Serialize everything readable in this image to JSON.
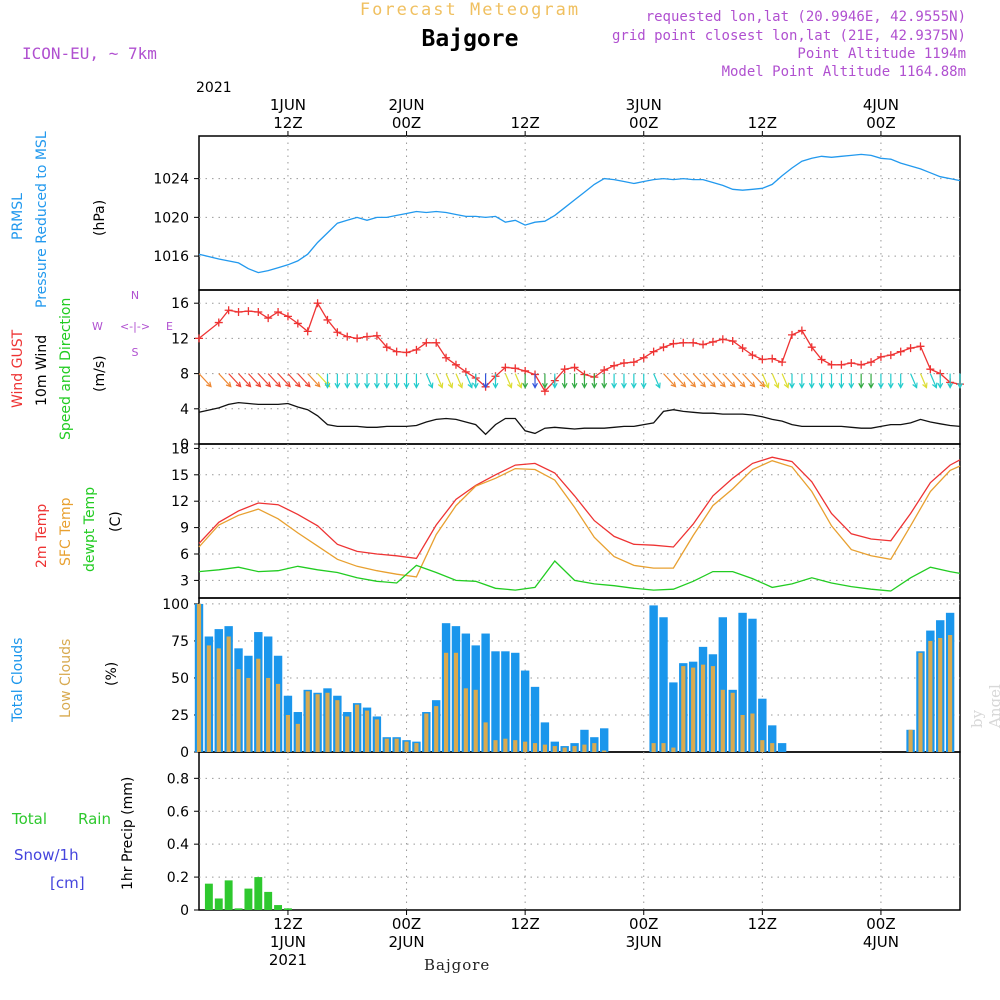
{
  "header": {
    "title": "Forecast Meteogram",
    "station": "Bajgore",
    "model": "ICON-EU, ~ 7km",
    "requested": "requested lon,lat (20.9946E, 42.9555N)",
    "grid": "grid point closest lon,lat (21E, 42.9375N)",
    "point_alt": "Point Altitude 1194m",
    "model_alt": "Model Point Altitude 1164.88m"
  },
  "footer": {
    "station": "Bajgore",
    "watermark": "by Angel"
  },
  "colors": {
    "pressure": "#2299ee",
    "gust": "#ee3333",
    "wind": "#111111",
    "t2m": "#ee3333",
    "tsfc": "#e8a030",
    "dewpt": "#22cc22",
    "total_clouds": "#1a96ec",
    "low_clouds": "#d8aa50",
    "rain": "#2ec82e",
    "snow": "#4444dd",
    "header_purple": "#b050d0"
  },
  "time_axis": {
    "top": {
      "year": "2021",
      "labels": [
        {
          "line1": "1JUN",
          "line2": "12Z"
        },
        {
          "line1": "2JUN",
          "line2": "00Z"
        },
        {
          "line1": "",
          "line2": "12Z"
        },
        {
          "line1": "3JUN",
          "line2": "00Z"
        },
        {
          "line1": "",
          "line2": "12Z"
        },
        {
          "line1": "4JUN",
          "line2": "00Z"
        }
      ]
    },
    "bottom": {
      "year": "2021",
      "labels": [
        {
          "line1": "12Z",
          "line2": "1JUN"
        },
        {
          "line1": "00Z",
          "line2": "2JUN"
        },
        {
          "line1": "12Z",
          "line2": ""
        },
        {
          "line1": "00Z",
          "line2": "3JUN"
        },
        {
          "line1": "12Z",
          "line2": ""
        },
        {
          "line1": "00Z",
          "line2": "4JUN"
        }
      ]
    },
    "tick_hours": [
      12,
      24,
      36,
      48,
      60,
      72
    ],
    "range_hours": [
      3,
      80
    ]
  },
  "chart_data": [
    {
      "type": "line",
      "panel": "pressure",
      "label_lines": [
        "PRMSL",
        "Pressure Reduced to MSL"
      ],
      "ylabel": "(hPa)",
      "yticks": [
        1016,
        1020,
        1024
      ],
      "ylim": [
        1012.5,
        1028.4
      ],
      "x_hours": [
        3,
        5,
        7,
        8,
        9,
        10,
        11,
        12,
        13,
        14,
        15,
        16,
        17,
        18,
        19,
        20,
        21,
        22,
        23,
        24,
        25,
        26,
        27,
        28,
        29,
        30,
        31,
        32,
        33,
        34,
        35,
        36,
        37,
        38,
        39,
        40,
        41,
        42,
        43,
        44,
        45,
        46,
        47,
        48,
        49,
        50,
        51,
        52,
        53,
        54,
        55,
        56,
        57,
        58,
        59,
        60,
        61,
        62,
        63,
        64,
        65,
        66,
        67,
        68,
        69,
        70,
        71,
        72,
        73,
        74,
        75,
        76,
        77,
        78,
        79,
        80
      ],
      "series": [
        {
          "name": "PRMSL",
          "values": [
            1016.2,
            1015.7,
            1015.3,
            1014.7,
            1014.3,
            1014.5,
            1014.8,
            1015.1,
            1015.5,
            1016.2,
            1017.4,
            1018.4,
            1019.4,
            1019.7,
            1020.0,
            1019.7,
            1020.0,
            1020.0,
            1020.2,
            1020.4,
            1020.6,
            1020.5,
            1020.6,
            1020.5,
            1020.3,
            1020.1,
            1020.1,
            1020.0,
            1020.1,
            1019.5,
            1019.7,
            1019.2,
            1019.5,
            1019.6,
            1020.2,
            1021.0,
            1021.8,
            1022.6,
            1023.4,
            1024.0,
            1023.9,
            1023.7,
            1023.5,
            1023.7,
            1023.9,
            1024.0,
            1023.9,
            1024.0,
            1023.9,
            1023.9,
            1023.6,
            1023.3,
            1022.9,
            1022.8,
            1022.9,
            1023.0,
            1023.4,
            1024.3,
            1025.1,
            1025.8,
            1026.1,
            1026.3,
            1026.2,
            1026.3,
            1026.4,
            1026.5,
            1026.4,
            1026.1,
            1026.0,
            1025.6,
            1025.3,
            1025.0,
            1024.6,
            1024.2,
            1024.0,
            1023.8
          ]
        }
      ]
    },
    {
      "type": "line",
      "panel": "wind",
      "label_lines": [
        "Wind GUST",
        "10m Wind",
        "Speed and Direction"
      ],
      "ylabel": "(m/s)",
      "compass": {
        "n": "N",
        "s": "S",
        "w": "W",
        "e": "E",
        "arrows": "<-|->"
      },
      "yticks": [
        0,
        4,
        8,
        12,
        16
      ],
      "ylim": [
        0,
        17.5
      ],
      "x_hours": [
        3,
        5,
        6,
        7,
        8,
        9,
        10,
        11,
        12,
        13,
        14,
        15,
        16,
        17,
        18,
        19,
        20,
        21,
        22,
        23,
        24,
        25,
        26,
        27,
        28,
        29,
        30,
        31,
        32,
        33,
        34,
        35,
        36,
        37,
        38,
        39,
        40,
        41,
        42,
        43,
        44,
        45,
        46,
        47,
        48,
        49,
        50,
        51,
        52,
        53,
        54,
        55,
        56,
        57,
        58,
        59,
        60,
        61,
        62,
        63,
        64,
        65,
        66,
        67,
        68,
        69,
        70,
        71,
        72,
        73,
        74,
        75,
        76,
        77,
        78,
        79,
        80
      ],
      "series": [
        {
          "name": "Wind GUST",
          "values": [
            12.0,
            13.8,
            15.2,
            15.0,
            15.1,
            15.0,
            14.3,
            15.0,
            14.5,
            13.7,
            12.8,
            16.0,
            14.1,
            12.7,
            12.2,
            12.0,
            12.2,
            12.3,
            11.0,
            10.5,
            10.4,
            10.7,
            11.5,
            11.5,
            9.8,
            9.0,
            8.2,
            7.5,
            6.5,
            7.7,
            8.7,
            8.6,
            8.3,
            7.9,
            6.0,
            7.2,
            8.5,
            8.7,
            7.9,
            7.6,
            8.4,
            8.9,
            9.2,
            9.3,
            9.8,
            10.5,
            11.0,
            11.4,
            11.5,
            11.5,
            11.3,
            11.6,
            11.9,
            11.7,
            10.9,
            10.1,
            9.6,
            9.7,
            9.3,
            12.4,
            12.9,
            11.0,
            9.6,
            9.0,
            9.0,
            9.2,
            9.0,
            9.3,
            9.9,
            10.1,
            10.5,
            10.9,
            11.1,
            8.5,
            8.0,
            7.0,
            6.8
          ]
        },
        {
          "name": "10m Wind",
          "values": [
            3.6,
            4.1,
            4.5,
            4.7,
            4.6,
            4.5,
            4.5,
            4.5,
            4.6,
            4.2,
            3.9,
            3.2,
            2.2,
            2.0,
            2.0,
            2.0,
            1.9,
            1.9,
            2.0,
            2.0,
            2.0,
            2.1,
            2.5,
            2.8,
            2.9,
            2.8,
            2.5,
            2.2,
            1.1,
            2.2,
            2.9,
            2.9,
            1.5,
            1.2,
            1.8,
            1.9,
            1.8,
            1.7,
            1.8,
            1.8,
            1.8,
            1.9,
            2.0,
            2.0,
            2.2,
            2.4,
            3.7,
            3.9,
            3.7,
            3.6,
            3.5,
            3.5,
            3.4,
            3.4,
            3.4,
            3.3,
            3.1,
            2.8,
            2.6,
            2.2,
            2.0,
            2.0,
            2.0,
            2.0,
            2.0,
            1.9,
            1.8,
            1.8,
            2.0,
            2.2,
            2.2,
            2.4,
            2.8,
            2.5,
            2.3,
            2.1,
            2.0
          ]
        }
      ]
    },
    {
      "type": "line",
      "panel": "temperature",
      "label_lines": [
        "2m Temp",
        "SFC Temp",
        "dewpt Temp"
      ],
      "ylabel": "(C)",
      "yticks": [
        3,
        6,
        9,
        12,
        15,
        18
      ],
      "ylim": [
        1,
        18.5
      ],
      "x_hours": [
        3,
        5,
        7,
        9,
        11,
        13,
        15,
        17,
        19,
        21,
        23,
        25,
        27,
        29,
        31,
        33,
        35,
        37,
        39,
        41,
        43,
        45,
        47,
        49,
        51,
        53,
        55,
        57,
        59,
        61,
        63,
        65,
        67,
        69,
        71,
        73,
        75,
        77,
        79,
        80
      ],
      "series": [
        {
          "name": "2m Temp",
          "values": [
            7.2,
            9.6,
            10.9,
            11.8,
            11.6,
            10.5,
            9.2,
            7.1,
            6.3,
            6.0,
            5.8,
            5.5,
            9.3,
            12.2,
            13.8,
            15.0,
            16.1,
            16.3,
            15.2,
            12.6,
            9.8,
            8.0,
            7.1,
            7.0,
            6.8,
            9.4,
            12.6,
            14.6,
            16.3,
            17.0,
            16.5,
            14.2,
            10.6,
            8.3,
            7.7,
            7.5,
            10.6,
            14.1,
            16.1,
            16.7
          ]
        },
        {
          "name": "SFC Temp",
          "values": [
            6.8,
            9.3,
            10.4,
            11.1,
            10.0,
            8.4,
            6.9,
            5.4,
            4.6,
            4.1,
            3.7,
            3.4,
            8.2,
            11.5,
            13.7,
            14.6,
            15.7,
            15.6,
            14.4,
            11.3,
            7.9,
            5.7,
            4.7,
            4.4,
            4.4,
            8.1,
            11.5,
            13.4,
            15.6,
            16.6,
            15.9,
            13.1,
            9.2,
            6.5,
            5.8,
            5.4,
            9.2,
            13.1,
            15.5,
            16.0
          ]
        },
        {
          "name": "dewpt Temp",
          "values": [
            4.0,
            4.2,
            4.5,
            4.0,
            4.1,
            4.6,
            4.2,
            3.9,
            3.3,
            2.9,
            2.7,
            4.7,
            3.9,
            3.0,
            2.9,
            2.1,
            1.9,
            2.2,
            5.2,
            3.0,
            2.6,
            2.4,
            2.1,
            1.9,
            2.0,
            2.9,
            4.0,
            4.0,
            3.2,
            2.2,
            2.6,
            3.3,
            2.7,
            2.3,
            2.0,
            1.8,
            3.3,
            4.5,
            4.0,
            3.8
          ]
        }
      ]
    },
    {
      "type": "bar",
      "panel": "clouds",
      "label_lines": [
        "Total Clouds",
        "Low Clouds"
      ],
      "ylabel": "(%)",
      "yticks": [
        0,
        25,
        50,
        75,
        100
      ],
      "ylim": [
        0,
        104
      ],
      "x_hours": [
        3,
        4,
        5,
        6,
        7,
        8,
        9,
        10,
        11,
        12,
        13,
        14,
        15,
        16,
        17,
        18,
        19,
        20,
        21,
        22,
        23,
        24,
        25,
        26,
        27,
        28,
        29,
        30,
        31,
        32,
        33,
        34,
        35,
        36,
        37,
        38,
        39,
        40,
        41,
        42,
        43,
        44,
        45,
        46,
        47,
        48,
        49,
        50,
        51,
        52,
        53,
        54,
        55,
        56,
        57,
        58,
        59,
        60,
        61,
        62,
        63,
        64,
        65,
        66,
        67,
        68,
        69,
        70,
        71,
        72,
        73,
        74,
        75,
        76,
        77,
        78,
        79,
        80
      ],
      "series": [
        {
          "name": "Total Clouds",
          "values": [
            100,
            78,
            83,
            85,
            70,
            65,
            81,
            78,
            65,
            38,
            27,
            42,
            40,
            43,
            38,
            27,
            33,
            30,
            24,
            10,
            10,
            8,
            7,
            27,
            35,
            87,
            85,
            80,
            72,
            80,
            68,
            68,
            67,
            55,
            44,
            20,
            7,
            4,
            6,
            15,
            10,
            16,
            0,
            0,
            0,
            0,
            99,
            91,
            47,
            60,
            61,
            71,
            66,
            91,
            42,
            94,
            90,
            36,
            18,
            6,
            0,
            0,
            0,
            0,
            0,
            0,
            0,
            0,
            0,
            0,
            0,
            0,
            15,
            68,
            82,
            89,
            94,
            0
          ]
        },
        {
          "name": "Low Clouds",
          "values": [
            100,
            72,
            70,
            78,
            56,
            50,
            63,
            50,
            46,
            25,
            19,
            41,
            39,
            40,
            35,
            24,
            32,
            28,
            22,
            9,
            9,
            7,
            6,
            26,
            31,
            67,
            67,
            43,
            42,
            20,
            8,
            9,
            8,
            7,
            6,
            5,
            4,
            3,
            4,
            5,
            6,
            1,
            0,
            0,
            0,
            0,
            6,
            6,
            3,
            58,
            57,
            59,
            58,
            42,
            40,
            25,
            26,
            8,
            6,
            0,
            0,
            0,
            0,
            0,
            0,
            0,
            0,
            0,
            0,
            0,
            0,
            0,
            15,
            67,
            75,
            77,
            79,
            0
          ]
        }
      ]
    },
    {
      "type": "bar",
      "panel": "precip",
      "label_lines": [
        "Total",
        "Rain",
        "Snow/1h",
        "[cm]"
      ],
      "ylabel": "1hr Precip (mm)",
      "yticks": [
        "0",
        "0.2",
        "0.4",
        "0.6",
        "0.8"
      ],
      "ylim": [
        0,
        0.96
      ],
      "x_hours": [
        4,
        5,
        6,
        7,
        8,
        9,
        10,
        11,
        12
      ],
      "series": [
        {
          "name": "Total Rain",
          "values": [
            0.16,
            0.07,
            0.18,
            0.01,
            0.13,
            0.2,
            0.11,
            0.03,
            0.01
          ]
        }
      ]
    }
  ]
}
